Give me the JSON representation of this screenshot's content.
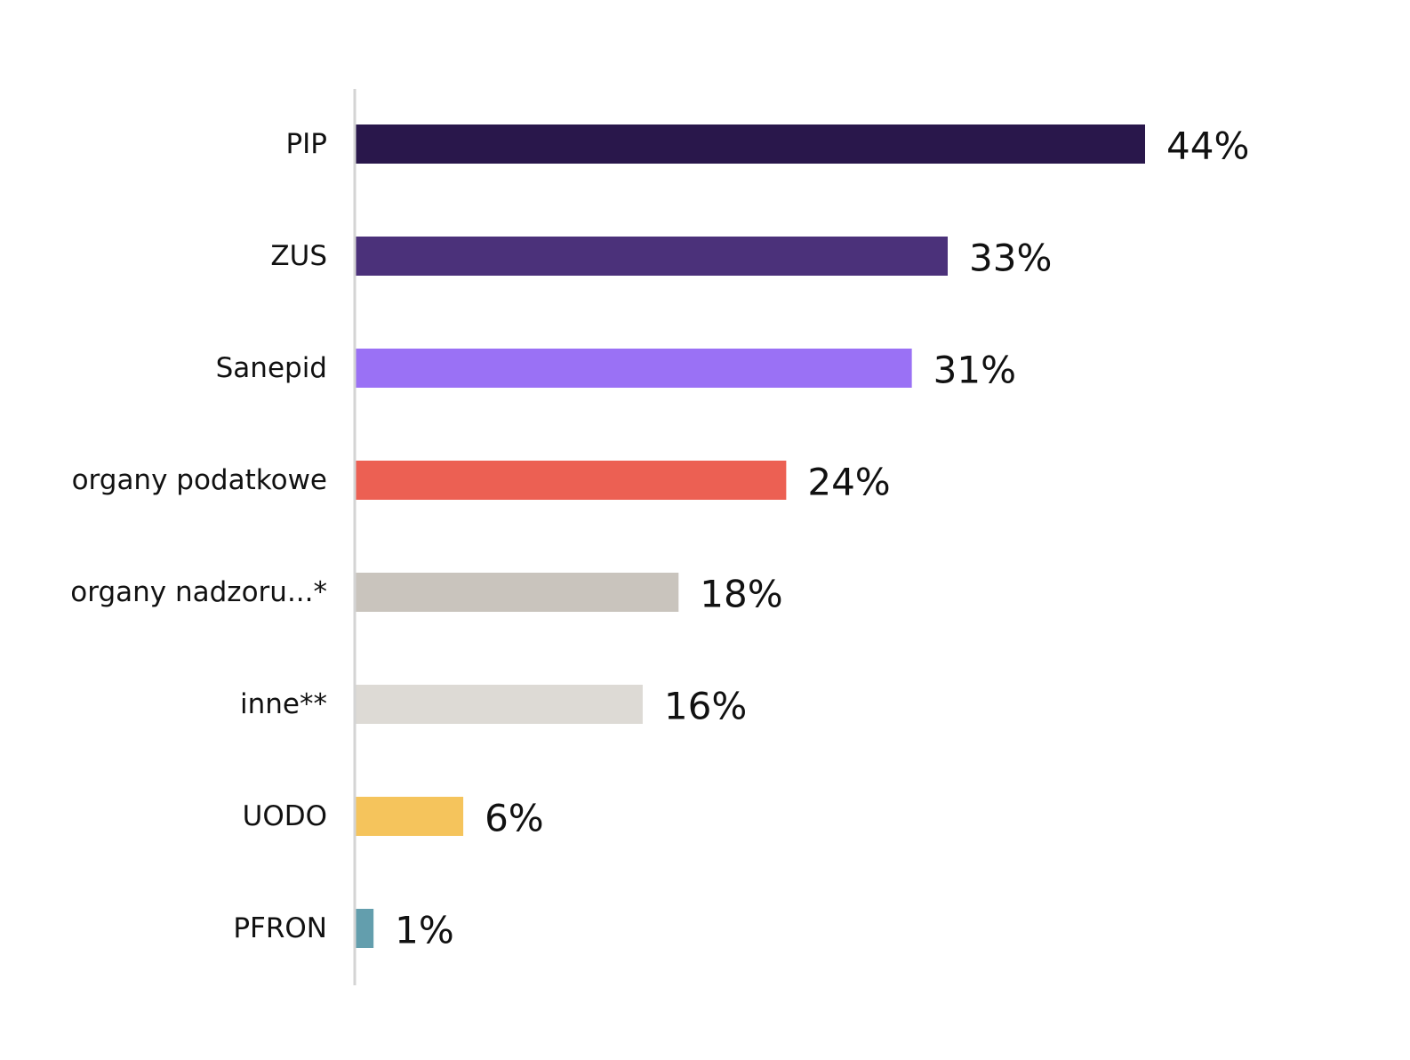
{
  "chart_data": {
    "type": "bar",
    "orientation": "horizontal",
    "categories": [
      "PIP",
      "ZUS",
      "Sanepid",
      "organy podatkowe",
      "organy nadzoru...*",
      "inne**",
      "UODO",
      "PFRON"
    ],
    "values": [
      44,
      33,
      31,
      24,
      18,
      16,
      6,
      1
    ],
    "value_labels": [
      "44%",
      "33%",
      "31%",
      "24%",
      "18%",
      "16%",
      "6%",
      "1%"
    ],
    "colors": [
      "#29174b",
      "#4b317a",
      "#9a71f5",
      "#ec6053",
      "#c9c4bd",
      "#dddad5",
      "#f5c45c",
      "#639ead"
    ],
    "axis_color": "#d4d4d4",
    "xlim": [
      0,
      44
    ],
    "grid": false,
    "legend": "none"
  }
}
